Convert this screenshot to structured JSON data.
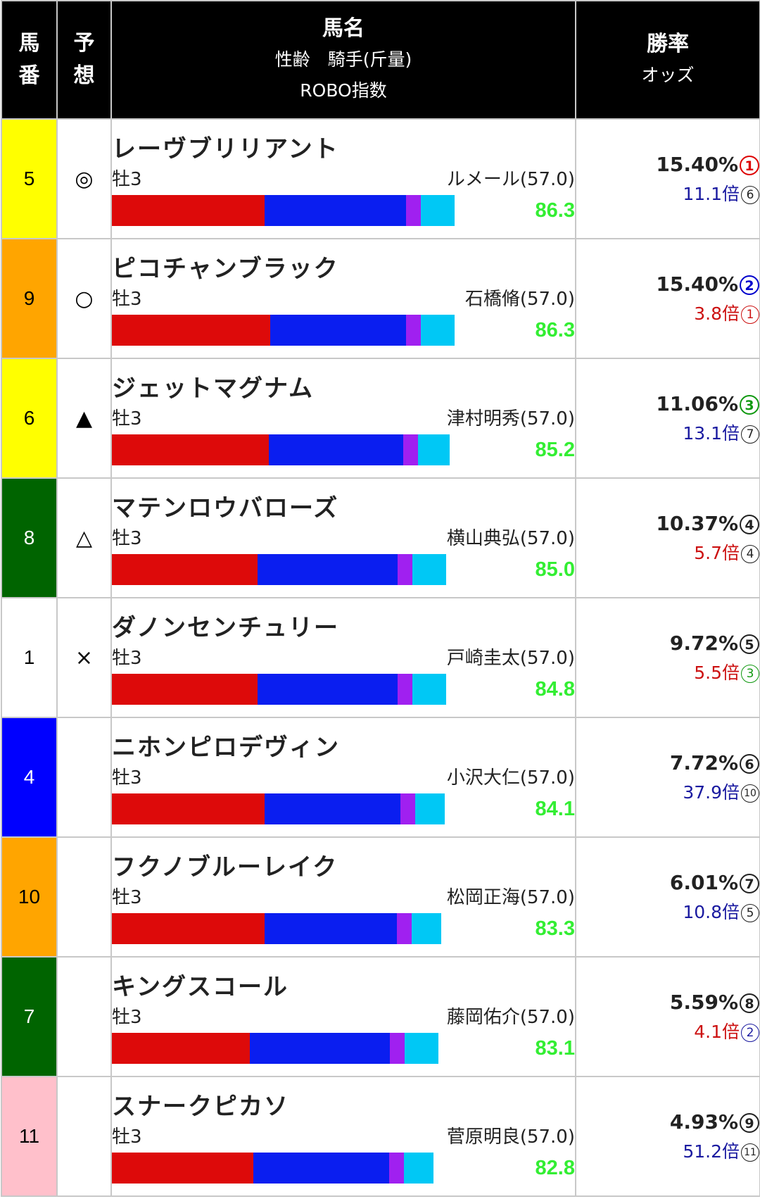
{
  "header": {
    "col1": [
      "馬",
      "番"
    ],
    "col2": [
      "予",
      "想"
    ],
    "col3_main": "馬名",
    "col3_sub1": "性齢　騎手(斤量)",
    "col3_sub2": "ROBO指数",
    "col4_main": "勝率",
    "col4_sub": "オッズ"
  },
  "colors": {
    "bar_seg1": "#dd0a0a",
    "bar_seg2": "#0a1ef0",
    "bar_seg3": "#a020f0",
    "bar_seg4": "#00c8f5",
    "score": "#33ee33"
  },
  "rows": [
    {
      "num": "5",
      "num_bg": "#ffff00",
      "num_color": "#000000",
      "mark": "◎",
      "name": "レーヴブリリアント",
      "sex_age": "牡3",
      "jockey": "ルメール(57.0)",
      "segments": [
        0.41,
        0.38,
        0.04,
        0.09
      ],
      "score": "86.3",
      "rate": "15.40%",
      "rate_rank": "1",
      "rate_rank_color": "#dd0000",
      "odds": "11.1倍",
      "odds_color": "#1a1aa0",
      "odds_rank": "6",
      "odds_rank_color": "#222222"
    },
    {
      "num": "9",
      "num_bg": "#ffa500",
      "num_color": "#000000",
      "mark": "○",
      "name": "ピコチャンブラック",
      "sex_age": "牡3",
      "jockey": "石橋脩(57.0)",
      "segments": [
        0.425,
        0.365,
        0.04,
        0.09
      ],
      "score": "86.3",
      "rate": "15.40%",
      "rate_rank": "2",
      "rate_rank_color": "#0000cc",
      "odds": "3.8倍",
      "odds_color": "#cc1111",
      "odds_rank": "1",
      "odds_rank_color": "#cc1111"
    },
    {
      "num": "6",
      "num_bg": "#ffff00",
      "num_color": "#000000",
      "mark": "▲",
      "name": "ジェットマグナム",
      "sex_age": "牡3",
      "jockey": "津村明秀(57.0)",
      "segments": [
        0.42,
        0.36,
        0.04,
        0.085
      ],
      "score": "85.2",
      "rate": "11.06%",
      "rate_rank": "3",
      "rate_rank_color": "#119911",
      "odds": "13.1倍",
      "odds_color": "#1a1aa0",
      "odds_rank": "7",
      "odds_rank_color": "#222222"
    },
    {
      "num": "8",
      "num_bg": "#006400",
      "num_color": "#ffffff",
      "mark": "△",
      "name": "マテンロウバローズ",
      "sex_age": "牡3",
      "jockey": "横山典弘(57.0)",
      "segments": [
        0.39,
        0.375,
        0.04,
        0.09
      ],
      "score": "85.0",
      "rate": "10.37%",
      "rate_rank": "4",
      "rate_rank_color": "#222222",
      "odds": "5.7倍",
      "odds_color": "#cc1111",
      "odds_rank": "4",
      "odds_rank_color": "#222222"
    },
    {
      "num": "1",
      "num_bg": "#ffffff",
      "num_color": "#000000",
      "mark": "×",
      "name": "ダノンセンチュリー",
      "sex_age": "牡3",
      "jockey": "戸崎圭太(57.0)",
      "segments": [
        0.39,
        0.375,
        0.04,
        0.09
      ],
      "score": "84.8",
      "rate": "9.72%",
      "rate_rank": "5",
      "rate_rank_color": "#222222",
      "odds": "5.5倍",
      "odds_color": "#cc1111",
      "odds_rank": "3",
      "odds_rank_color": "#119911"
    },
    {
      "num": "4",
      "num_bg": "#0000ff",
      "num_color": "#ffffff",
      "mark": "",
      "name": "ニホンピロデヴィン",
      "sex_age": "牡3",
      "jockey": "小沢大仁(57.0)",
      "segments": [
        0.41,
        0.365,
        0.04,
        0.08
      ],
      "score": "84.1",
      "rate": "7.72%",
      "rate_rank": "6",
      "rate_rank_color": "#222222",
      "odds": "37.9倍",
      "odds_color": "#1a1aa0",
      "odds_rank": "10",
      "odds_rank_color": "#222222"
    },
    {
      "num": "10",
      "num_bg": "#ffa500",
      "num_color": "#000000",
      "mark": "",
      "name": "フクノブルーレイク",
      "sex_age": "牡3",
      "jockey": "松岡正海(57.0)",
      "segments": [
        0.41,
        0.355,
        0.04,
        0.08
      ],
      "score": "83.3",
      "rate": "6.01%",
      "rate_rank": "7",
      "rate_rank_color": "#222222",
      "odds": "10.8倍",
      "odds_color": "#1a1aa0",
      "odds_rank": "5",
      "odds_rank_color": "#222222"
    },
    {
      "num": "7",
      "num_bg": "#006400",
      "num_color": "#ffffff",
      "mark": "",
      "name": "キングスコール",
      "sex_age": "牡3",
      "jockey": "藤岡佑介(57.0)",
      "segments": [
        0.37,
        0.375,
        0.04,
        0.09
      ],
      "score": "83.1",
      "rate": "5.59%",
      "rate_rank": "8",
      "rate_rank_color": "#222222",
      "odds": "4.1倍",
      "odds_color": "#cc1111",
      "odds_rank": "2",
      "odds_rank_color": "#1a1aa0"
    },
    {
      "num": "11",
      "num_bg": "#ffc0cb",
      "num_color": "#000000",
      "mark": "",
      "name": "スナークピカソ",
      "sex_age": "牡3",
      "jockey": "菅原明良(57.0)",
      "segments": [
        0.38,
        0.365,
        0.04,
        0.08
      ],
      "score": "82.8",
      "rate": "4.93%",
      "rate_rank": "9",
      "rate_rank_color": "#222222",
      "odds": "51.2倍",
      "odds_color": "#1a1aa0",
      "odds_rank": "11",
      "odds_rank_color": "#222222"
    }
  ]
}
